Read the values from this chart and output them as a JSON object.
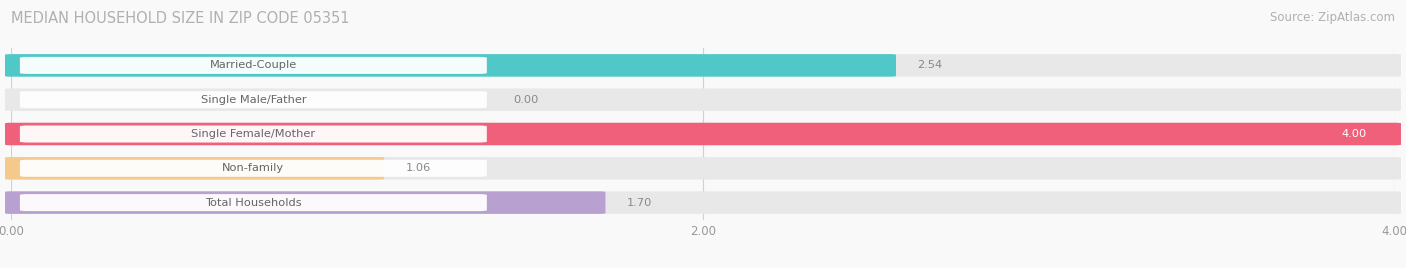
{
  "title": "MEDIAN HOUSEHOLD SIZE IN ZIP CODE 05351",
  "source": "Source: ZipAtlas.com",
  "categories": [
    "Married-Couple",
    "Single Male/Father",
    "Single Female/Mother",
    "Non-family",
    "Total Households"
  ],
  "values": [
    2.54,
    0.0,
    4.0,
    1.06,
    1.7
  ],
  "bar_colors": [
    "#50C8C8",
    "#9BBDE8",
    "#F0607A",
    "#F5C98A",
    "#B8A0D0"
  ],
  "xlim": [
    0,
    4.0
  ],
  "xticks": [
    0.0,
    2.0,
    4.0
  ],
  "xtick_labels": [
    "0.00",
    "2.00",
    "4.00"
  ],
  "background_color": "#f9f9f9",
  "bar_bg_color": "#e8e8e8",
  "title_fontsize": 10.5,
  "source_fontsize": 8.5,
  "label_text_color": "#666666",
  "value_text_color": "#888888",
  "figsize": [
    14.06,
    2.68
  ],
  "dpi": 100
}
